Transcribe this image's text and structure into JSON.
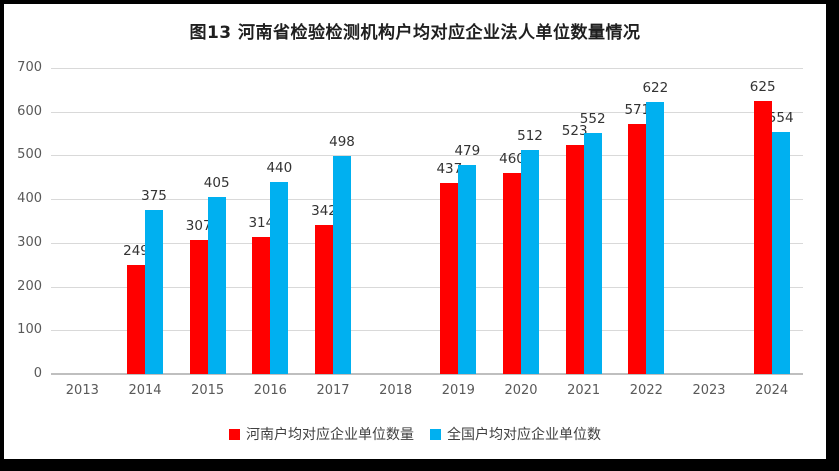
{
  "window": {
    "frame_color": "#000000",
    "chart_background": "#FFFFFF"
  },
  "chart_data": {
    "type": "bar",
    "title": "图13 河南省检验检测机构户均对应企业法人单位数量情况",
    "categories": [
      "2013",
      "2014",
      "2015",
      "2016",
      "2017",
      "2018",
      "2019",
      "2020",
      "2021",
      "2022",
      "2023",
      "2024"
    ],
    "series": [
      {
        "key": "henan",
        "name": "河南户均对应企业单位数量",
        "color": "#FF0000",
        "values": [
          null,
          249,
          307,
          314,
          342,
          null,
          437,
          460,
          523,
          571,
          null,
          625
        ]
      },
      {
        "key": "national",
        "name": "全国户均对应企业单位数",
        "color": "#00B0F0",
        "values": [
          null,
          375,
          405,
          440,
          498,
          null,
          479,
          512,
          552,
          622,
          null,
          554
        ]
      }
    ],
    "ylim": [
      0,
      700
    ],
    "yticks": [
      0,
      100,
      200,
      300,
      400,
      500,
      600,
      700
    ],
    "xlabel": "",
    "ylabel": "",
    "grid": true,
    "data_labels": true,
    "legend_position": "bottom"
  },
  "styles": {
    "grid_color": "#D9D9D9",
    "axis_line_color": "#BFBFBF",
    "axis_text_color": "#595959",
    "data_label_color": "#333333",
    "title_color": "#1F1F1F",
    "legend_text_color": "#404040"
  }
}
